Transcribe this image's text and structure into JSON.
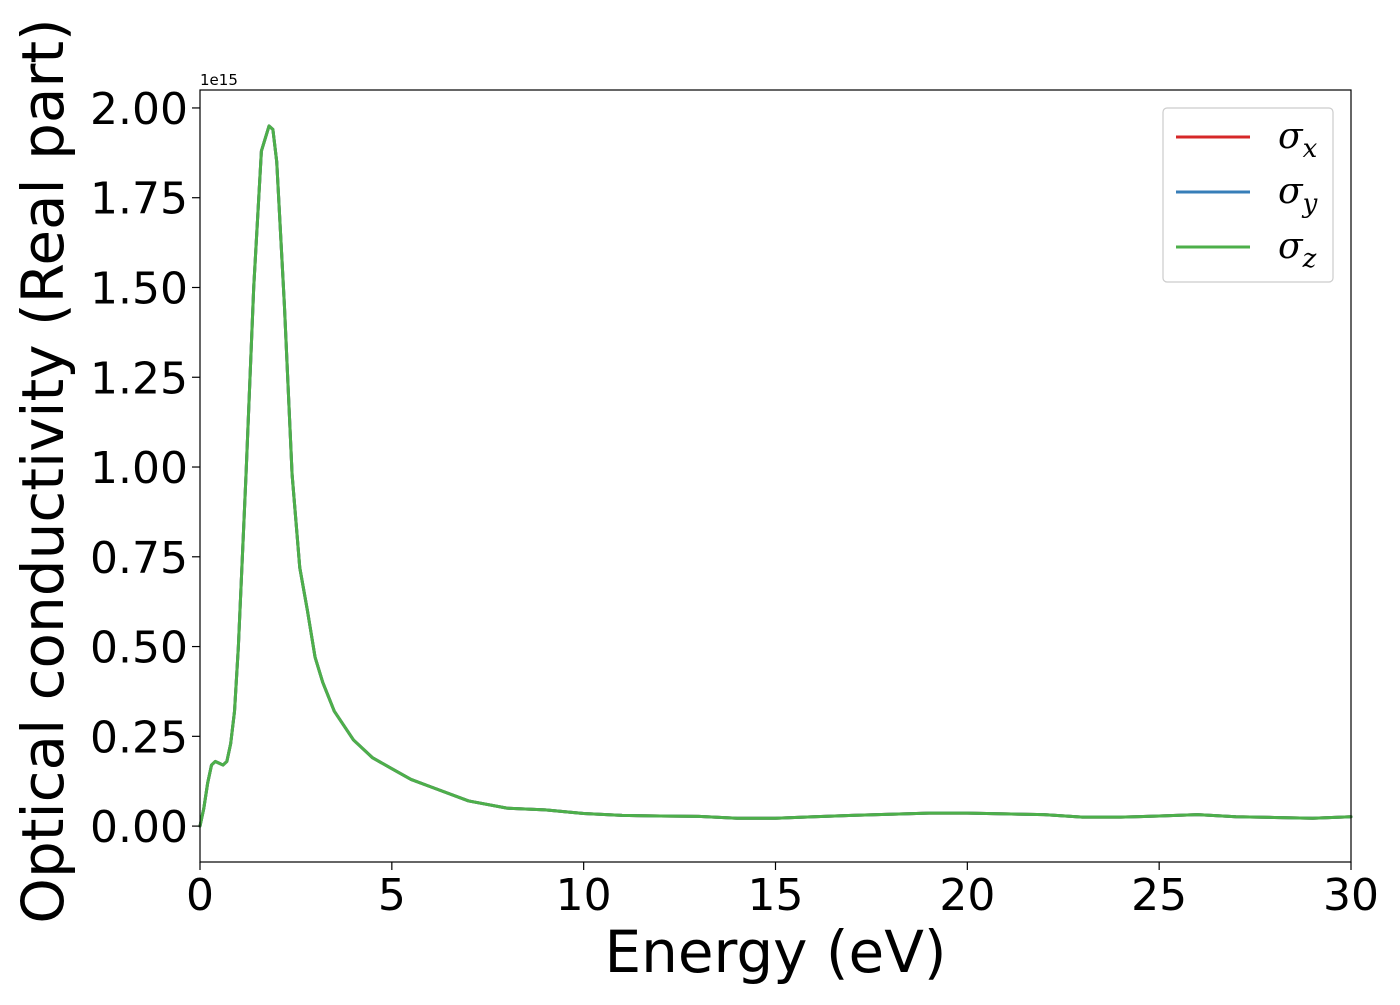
{
  "chart_data": {
    "type": "line",
    "xlabel": "Energy (eV)",
    "ylabel": "Optical conductivity (Real part)",
    "y_offset_label": "1e15",
    "y_scale_factor": 1000000000000000.0,
    "xlim": [
      0,
      30
    ],
    "ylim": [
      -0.1,
      2.05
    ],
    "x_ticks": [
      0,
      5,
      10,
      15,
      20,
      25,
      30
    ],
    "x_tick_labels": [
      "0",
      "5",
      "10",
      "15",
      "20",
      "25",
      "30"
    ],
    "y_ticks": [
      0.0,
      0.25,
      0.5,
      0.75,
      1.0,
      1.25,
      1.5,
      1.75,
      2.0
    ],
    "y_tick_labels": [
      "0.00",
      "0.25",
      "0.50",
      "0.75",
      "1.00",
      "1.25",
      "1.50",
      "1.75",
      "2.00"
    ],
    "grid": false,
    "legend_position": "top-right",
    "x": [
      0,
      0.1,
      0.2,
      0.3,
      0.4,
      0.5,
      0.6,
      0.7,
      0.8,
      0.9,
      1.0,
      1.2,
      1.4,
      1.6,
      1.8,
      1.9,
      2.0,
      2.2,
      2.4,
      2.6,
      2.8,
      3.0,
      3.2,
      3.5,
      4.0,
      4.5,
      5.0,
      5.5,
      6.0,
      7.0,
      8.0,
      9.0,
      10.0,
      11.0,
      12.0,
      13.0,
      14.0,
      15.0,
      16.0,
      17.0,
      18.0,
      19.0,
      20.0,
      21.0,
      22.0,
      23.0,
      24.0,
      25.0,
      26.0,
      27.0,
      28.0,
      29.0,
      30.0
    ],
    "series": [
      {
        "name": "σx",
        "symbol": "σ",
        "subscript": "x",
        "color": "#d62728",
        "values": [
          0.0,
          0.05,
          0.12,
          0.17,
          0.18,
          0.175,
          0.17,
          0.18,
          0.23,
          0.32,
          0.5,
          0.98,
          1.5,
          1.88,
          1.95,
          1.94,
          1.85,
          1.45,
          0.98,
          0.72,
          0.6,
          0.47,
          0.4,
          0.32,
          0.24,
          0.19,
          0.16,
          0.13,
          0.11,
          0.07,
          0.05,
          0.045,
          0.035,
          0.03,
          0.028,
          0.027,
          0.022,
          0.022,
          0.026,
          0.03,
          0.033,
          0.036,
          0.036,
          0.034,
          0.032,
          0.025,
          0.025,
          0.028,
          0.032,
          0.026,
          0.024,
          0.022,
          0.026
        ]
      },
      {
        "name": "σy",
        "symbol": "σ",
        "subscript": "y",
        "color": "#377eb8",
        "values": [
          0.0,
          0.05,
          0.12,
          0.17,
          0.18,
          0.175,
          0.17,
          0.18,
          0.23,
          0.32,
          0.5,
          0.98,
          1.5,
          1.88,
          1.95,
          1.94,
          1.85,
          1.45,
          0.98,
          0.72,
          0.6,
          0.47,
          0.4,
          0.32,
          0.24,
          0.19,
          0.16,
          0.13,
          0.11,
          0.07,
          0.05,
          0.045,
          0.035,
          0.03,
          0.028,
          0.027,
          0.022,
          0.022,
          0.026,
          0.03,
          0.033,
          0.036,
          0.036,
          0.034,
          0.032,
          0.025,
          0.025,
          0.028,
          0.032,
          0.026,
          0.024,
          0.022,
          0.026
        ]
      },
      {
        "name": "σz",
        "symbol": "σ",
        "subscript": "z",
        "color": "#4daf4a",
        "values": [
          0.0,
          0.05,
          0.12,
          0.17,
          0.18,
          0.175,
          0.17,
          0.18,
          0.23,
          0.32,
          0.5,
          0.98,
          1.5,
          1.88,
          1.95,
          1.94,
          1.85,
          1.45,
          0.98,
          0.72,
          0.6,
          0.47,
          0.4,
          0.32,
          0.24,
          0.19,
          0.16,
          0.13,
          0.11,
          0.07,
          0.05,
          0.045,
          0.035,
          0.03,
          0.028,
          0.027,
          0.022,
          0.022,
          0.026,
          0.03,
          0.033,
          0.036,
          0.036,
          0.034,
          0.032,
          0.025,
          0.025,
          0.028,
          0.032,
          0.026,
          0.024,
          0.022,
          0.026
        ]
      }
    ]
  }
}
